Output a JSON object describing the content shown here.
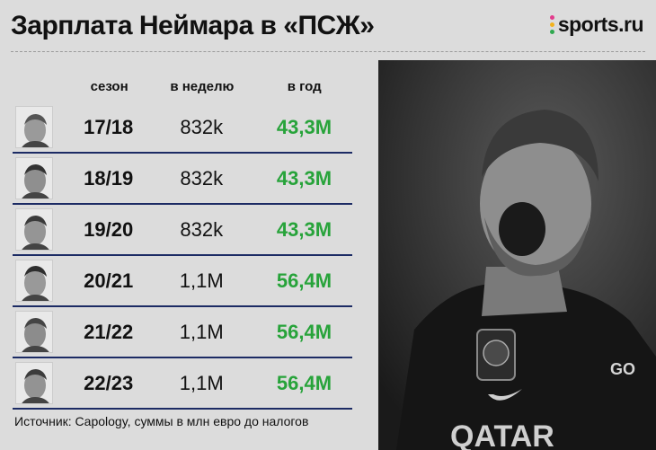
{
  "title": "Зарплата Неймара в «ПСЖ»",
  "brand": {
    "text": "sports.ru",
    "dot_colors": [
      "#e23b8c",
      "#f2b21c",
      "#2fa84f"
    ]
  },
  "table": {
    "headers": {
      "season": "сезон",
      "per_week": "в неделю",
      "per_year": "в год"
    },
    "rows": [
      {
        "season": "17/18",
        "per_week": "832k",
        "per_year": "43,3M"
      },
      {
        "season": "18/19",
        "per_week": "832k",
        "per_year": "43,3M"
      },
      {
        "season": "19/20",
        "per_week": "832k",
        "per_year": "43,3M"
      },
      {
        "season": "20/21",
        "per_week": "1,1M",
        "per_year": "56,4M"
      },
      {
        "season": "21/22",
        "per_week": "1,1M",
        "per_year": "56,4M"
      },
      {
        "season": "22/23",
        "per_week": "1,1M",
        "per_year": "56,4M"
      }
    ]
  },
  "source": "Источник: Capology, суммы в млн евро до налогов",
  "colors": {
    "accent_green": "#27a33a",
    "rule_navy": "#1c2b64"
  }
}
